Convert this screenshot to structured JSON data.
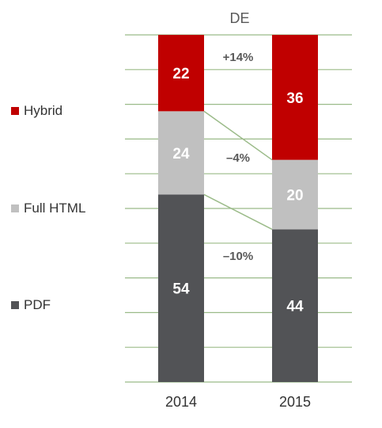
{
  "chart_data": {
    "type": "bar",
    "stacked": true,
    "percent": true,
    "title": "DE",
    "categories": [
      "2014",
      "2015"
    ],
    "series": [
      {
        "name": "PDF",
        "values": [
          54,
          44
        ],
        "color": "#525356",
        "change_label": "–10%"
      },
      {
        "name": "Full HTML",
        "values": [
          24,
          20
        ],
        "color": "#c0c0c0",
        "change_label": "–4%"
      },
      {
        "name": "Hybrid",
        "values": [
          22,
          36
        ],
        "color": "#c00000",
        "change_label": "+14%"
      }
    ],
    "ylim": [
      0,
      100
    ],
    "grid": true,
    "grid_color": "#9bbb89",
    "legend_position": "left"
  }
}
